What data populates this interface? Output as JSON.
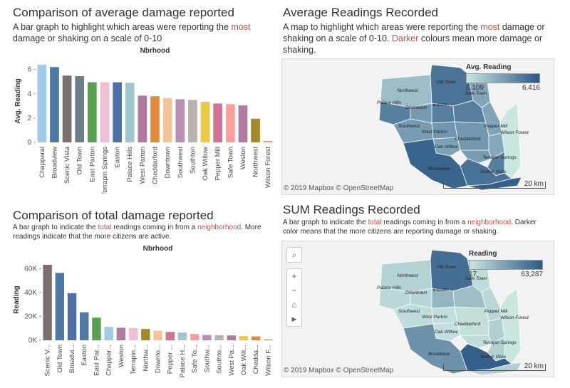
{
  "panels": {
    "avg_bar": {
      "title": "Comparison of average damage reported",
      "desc_pre": "A bar graph to highlight which areas were reporting the ",
      "desc_hl": "most",
      "desc_post": " damage or shaking on a scale of 0-10"
    },
    "avg_map": {
      "title": "Average Readings Recorded",
      "desc_pre": "A map to highlight which areas were reporting the ",
      "desc_hl": "most",
      "desc_mid": " damage or shaking on a scale of 0-10. ",
      "desc_hl2": "Darker",
      "desc_post": " colours mean more damage or shaking."
    },
    "sum_bar": {
      "title": "Comparison of total damage reported",
      "desc_pre": "A bar graph to indicate the ",
      "desc_hl": "total",
      "desc_mid": " readings coming in from a ",
      "desc_hl2": "neighborhood",
      "desc_post": ". More readings indicate that the more citizens are active."
    },
    "sum_map": {
      "title": "SUM Readings Recorded",
      "desc_pre": "A bar graph to indicate the ",
      "desc_hl": "total",
      "desc_mid": " readings coming in from a ",
      "desc_hl2": "neighborhood",
      "desc_post": ". Darker color means  that the more citizens are reporting damage or shaking."
    }
  },
  "chart_data": [
    {
      "type": "bar",
      "title": "Nbrhood",
      "ylabel": "Avg. Reading",
      "ylim": [
        0,
        6.8
      ],
      "yticks": [
        0,
        2,
        4,
        6
      ],
      "categories": [
        "Chapparal",
        "Broadview",
        "Scenic Vista",
        "Old Town",
        "East Parton",
        "Terrapin Springs",
        "Easton",
        "Palace Hills",
        "West Parton",
        "Cheddarford",
        "Downtown",
        "Southwest",
        "Southton",
        "Oak Willow",
        "Pepper Mill",
        "Safe Town",
        "Weston",
        "Northwest",
        "Wilson Forest"
      ],
      "values": [
        6.4,
        6.2,
        5.5,
        5.45,
        4.95,
        4.95,
        4.95,
        4.9,
        3.85,
        3.8,
        3.65,
        3.55,
        3.5,
        3.35,
        3.2,
        3.15,
        3.05,
        1.95,
        0.11
      ],
      "colors": [
        "#a0cbe8",
        "#4e79a7",
        "#79706e",
        "#6b7f8a",
        "#59a14f",
        "#f1bfd3",
        "#4e6fa7",
        "#9fc6cc",
        "#b07aa1",
        "#e48b3a",
        "#f2c496",
        "#b990b3",
        "#bab0ac",
        "#edc948",
        "#d37295",
        "#ff9d9a",
        "#b07aa1",
        "#a58a2c",
        "#d89868"
      ]
    },
    {
      "type": "bar",
      "title": "Nbrhood",
      "ylabel": "Reading",
      "ylim": [
        0,
        68000
      ],
      "yticks": [
        0,
        20000,
        40000,
        60000
      ],
      "ytick_labels": [
        "0K",
        "20K",
        "40K",
        "60K"
      ],
      "categories": [
        "Scenic V...",
        "Old Town",
        "Broadvi...",
        "Easton",
        "East Par...",
        "Chappar...",
        "Weston",
        "Terrapin...",
        "Northw...",
        "Downto...",
        "Pepper ...",
        "Palace H...",
        "Safe To...",
        "Southw...",
        "Southto...",
        "West Pa...",
        "Oak Will...",
        "Chedda...",
        "Wilson F..."
      ],
      "values": [
        63287,
        56500,
        39500,
        23500,
        19000,
        11200,
        10500,
        10300,
        9500,
        8000,
        7000,
        6500,
        5300,
        4500,
        4300,
        4100,
        3500,
        3300,
        17
      ],
      "colors": [
        "#79706e",
        "#4e79a7",
        "#4e6fa7",
        "#4e79a7",
        "#59a14f",
        "#a0cbe8",
        "#b07aa1",
        "#f1bfd3",
        "#a58a2c",
        "#f2c496",
        "#d37295",
        "#9fc6cc",
        "#ff9d9a",
        "#b990b3",
        "#bab0ac",
        "#b07aa1",
        "#edc948",
        "#e48b3a",
        "#d89868"
      ]
    }
  ],
  "maps": {
    "avg": {
      "legend_title": "Avg. Reading",
      "legend_min": "0.109",
      "legend_max": "6.416",
      "attribution": "© 2019 Mapbox © OpenStreetMap",
      "scale_label": "20 km",
      "color_low": "#c8e6e0",
      "color_high": "#2b5886",
      "regions": [
        {
          "name": "Northwest",
          "value": 2.0
        },
        {
          "name": "Old Town",
          "value": 5.45
        },
        {
          "name": "Safe Town",
          "value": 3.15
        },
        {
          "name": "Palace Hills",
          "value": 4.9
        },
        {
          "name": "Downtown",
          "value": 3.65
        },
        {
          "name": "Easton",
          "value": 4.95
        },
        {
          "name": "Southwest",
          "value": 3.55
        },
        {
          "name": "West Parton",
          "value": 3.85
        },
        {
          "name": "East Parton",
          "value": 4.95
        },
        {
          "name": "Pepper Mill",
          "value": 3.2
        },
        {
          "name": "Wilson Forest",
          "value": 0.11
        },
        {
          "name": "Cheddarford",
          "value": 3.8
        },
        {
          "name": "Oak Willow",
          "value": 3.35
        },
        {
          "name": "Southton",
          "value": 3.5
        },
        {
          "name": "Weston",
          "value": 3.05
        },
        {
          "name": "Terrapin Springs",
          "value": 4.95
        },
        {
          "name": "Broadview",
          "value": 6.2
        },
        {
          "name": "Scenic Vista",
          "value": 5.5
        },
        {
          "name": "Chapparal",
          "value": 6.4
        }
      ]
    },
    "sum": {
      "legend_title": "Reading",
      "legend_min": "17",
      "legend_max": "63,287",
      "attribution": "© 2019 Mapbox © OpenStreetMap",
      "scale_label": "20 km",
      "color_low": "#c8e6e0",
      "color_high": "#2b5886",
      "regions": [
        {
          "name": "Northwest",
          "value": 9500
        },
        {
          "name": "Old Town",
          "value": 56500
        },
        {
          "name": "Safe Town",
          "value": 5300
        },
        {
          "name": "Palace Hills",
          "value": 6500
        },
        {
          "name": "Downtown",
          "value": 8000
        },
        {
          "name": "Easton",
          "value": 23500
        },
        {
          "name": "Southwest",
          "value": 4500
        },
        {
          "name": "West Parton",
          "value": 4100
        },
        {
          "name": "East Parton",
          "value": 19000
        },
        {
          "name": "Pepper Mill",
          "value": 7000
        },
        {
          "name": "Wilson Forest",
          "value": 17
        },
        {
          "name": "Cheddarford",
          "value": 3300
        },
        {
          "name": "Oak Willow",
          "value": 3500
        },
        {
          "name": "Southton",
          "value": 4300
        },
        {
          "name": "Weston",
          "value": 10500
        },
        {
          "name": "Terrapin Springs",
          "value": 10300
        },
        {
          "name": "Broadview",
          "value": 39500
        },
        {
          "name": "Scenic Vista",
          "value": 63287
        },
        {
          "name": "Chapparal",
          "value": 11200
        }
      ]
    }
  },
  "toolbar": {
    "search": "⌕",
    "zoom_in": "+",
    "zoom_out": "−",
    "home": "⌂",
    "play": "▶"
  }
}
